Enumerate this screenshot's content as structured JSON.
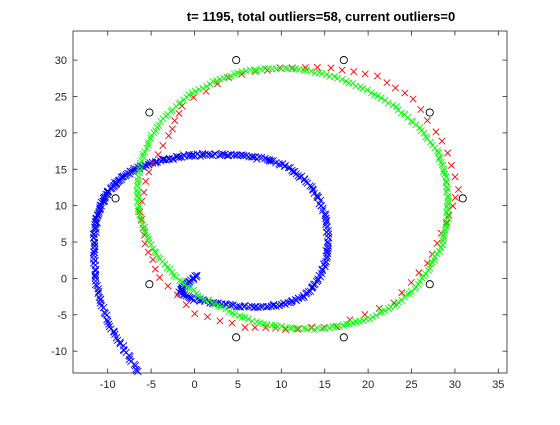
{
  "chart_data": {
    "type": "scatter",
    "title": "t= 1195, total outliers=58, current outliers=0",
    "xlabel": "",
    "ylabel": "",
    "xlim": [
      -14,
      36
    ],
    "ylim": [
      -13,
      34
    ],
    "xticks": [
      -10,
      -5,
      0,
      5,
      10,
      15,
      20,
      25,
      30,
      35
    ],
    "yticks": [
      -10,
      -5,
      0,
      5,
      10,
      15,
      20,
      25,
      30
    ],
    "grid": false,
    "legend": "none",
    "series": [
      {
        "marker": "circle-open",
        "color": "#000000",
        "x": [
          4.8,
          17.2,
          27.1,
          30.9,
          27.1,
          17.2,
          4.8,
          -5.2,
          -9.1,
          -5.2
        ],
        "y": [
          30.0,
          30.0,
          22.8,
          11.0,
          -0.8,
          -8.1,
          -8.1,
          -0.8,
          11.0,
          22.8
        ]
      },
      {
        "marker": "x",
        "color": "#ff0000",
        "x": [
          30.5,
          28.6,
          25.2,
          21.1,
          15.7,
          9.8,
          4.0,
          -1.4,
          -3.0,
          -5.3,
          -6.3,
          -5.7,
          -4.0,
          0.0,
          5.8,
          10.5,
          16.3,
          23.0,
          26.9,
          29.0
        ],
        "y": [
          12.2,
          18.8,
          24.6,
          27.7,
          29.0,
          29.0,
          27.7,
          23.8,
          19.6,
          14.6,
          9.2,
          4.8,
          0.2,
          -4.8,
          -6.7,
          -7.0,
          -6.5,
          -3.3,
          2.0,
          7.5
        ]
      },
      {
        "marker": "x",
        "color": "#00ff00",
        "x": [
          29.2,
          28.9,
          27.9,
          25.9,
          23.2,
          19.9,
          16.5,
          13.0,
          9.5,
          5.9,
          2.5,
          -0.6,
          -3.1,
          -5.0,
          -6.1,
          -6.6,
          -6.4,
          -5.5,
          -4.0,
          -1.8,
          0.8,
          3.9,
          7.1,
          10.5,
          13.8,
          17.1,
          20.2,
          23.0,
          25.3,
          27.1,
          28.5,
          29.1
        ],
        "y": [
          11.0,
          14.3,
          17.6,
          20.7,
          23.5,
          25.9,
          27.6,
          28.6,
          28.9,
          28.5,
          27.2,
          25.2,
          22.6,
          19.6,
          16.2,
          12.7,
          9.2,
          5.8,
          2.6,
          -0.2,
          -2.6,
          -4.5,
          -6.0,
          -6.8,
          -7.0,
          -6.5,
          -5.5,
          -3.8,
          -1.4,
          1.4,
          4.6,
          7.9
        ]
      },
      {
        "marker": "x",
        "color": "#0000ff",
        "x": [
          -6.4,
          -8.0,
          -9.6,
          -10.8,
          -11.4,
          -11.6,
          -11.5,
          -11.2,
          -10.7,
          -10.0,
          -9.1,
          -8.0,
          -6.6,
          -5.0,
          -3.0,
          -1.0,
          1.0,
          3.5,
          6.0,
          8.5,
          10.8,
          12.8,
          14.3,
          15.2,
          15.4,
          15.0,
          14.0,
          12.5,
          10.5,
          8.0,
          5.0,
          2.5,
          0.0,
          -1.8,
          -0.8,
          0.3
        ],
        "y": [
          -12.9,
          -10.0,
          -6.9,
          -3.5,
          0.0,
          3.5,
          6.2,
          8.4,
          10.3,
          11.8,
          13.0,
          14.2,
          15.2,
          15.8,
          16.4,
          16.9,
          17.0,
          17.0,
          16.8,
          16.3,
          15.3,
          13.5,
          11.0,
          8.0,
          4.8,
          1.8,
          -0.8,
          -2.5,
          -3.5,
          -3.9,
          -3.9,
          -3.4,
          -2.9,
          -1.8,
          -0.7,
          0.3
        ]
      }
    ]
  }
}
